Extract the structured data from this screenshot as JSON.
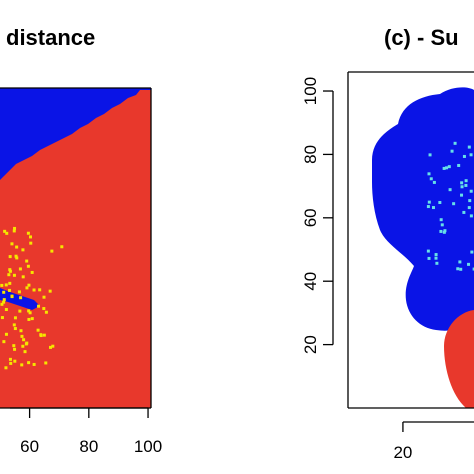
{
  "chart_data": [
    {
      "panel": "left",
      "type": "heatmap",
      "title": "distance",
      "xlabel": "",
      "ylabel": "",
      "xlim": [
        50,
        101
      ],
      "ylim": [
        0,
        100
      ],
      "x_ticks": [
        60,
        80,
        100
      ],
      "x_tick_labels": [
        "60",
        "80",
        "100"
      ],
      "colors": {
        "region_a": "#0a14e6",
        "region_b": "#e8382c",
        "points": "#f5e600"
      },
      "regions": [
        {
          "name": "",
          "color": "#0a14e6",
          "description": "upper-left wedge above diagonal boundary from (50,74) to (96,100)"
        },
        {
          "name": "",
          "color": "#e8382c",
          "description": "remainder of domain"
        },
        {
          "name": "",
          "color": "#0a14e6",
          "description": "thin horizontal sliver near y=30 between x=50 and x=60"
        }
      ],
      "points_cluster": {
        "x_range": [
          50,
          72
        ],
        "y_range": [
          13,
          57
        ],
        "approx_count": 80
      }
    },
    {
      "panel": "right",
      "type": "heatmap",
      "title": "(c) - Su",
      "xlabel": "",
      "ylabel": "",
      "xlim": [
        3,
        42
      ],
      "ylim": [
        0,
        106
      ],
      "x_ticks": [
        20
      ],
      "x_tick_labels": [
        "20"
      ],
      "y_ticks": [
        20,
        40,
        60,
        80,
        100
      ],
      "y_tick_labels": [
        "20",
        "40",
        "60",
        "80",
        "100"
      ],
      "colors": {
        "region_a": "#0a14e6",
        "region_b": "#e8382c",
        "points": "#66e0e8",
        "background": "#ffffff"
      },
      "regions": [
        {
          "name": "",
          "color": "#0a14e6",
          "description": "irregular blob x approx 9-42, y approx 30-98"
        },
        {
          "name": "",
          "color": "#e8382c",
          "description": "circular region lower right centred near (40,16)"
        }
      ],
      "points_cluster": {
        "x_range": [
          26,
          42
        ],
        "y_range": [
          44,
          85
        ],
        "approx_count": 45
      }
    }
  ]
}
